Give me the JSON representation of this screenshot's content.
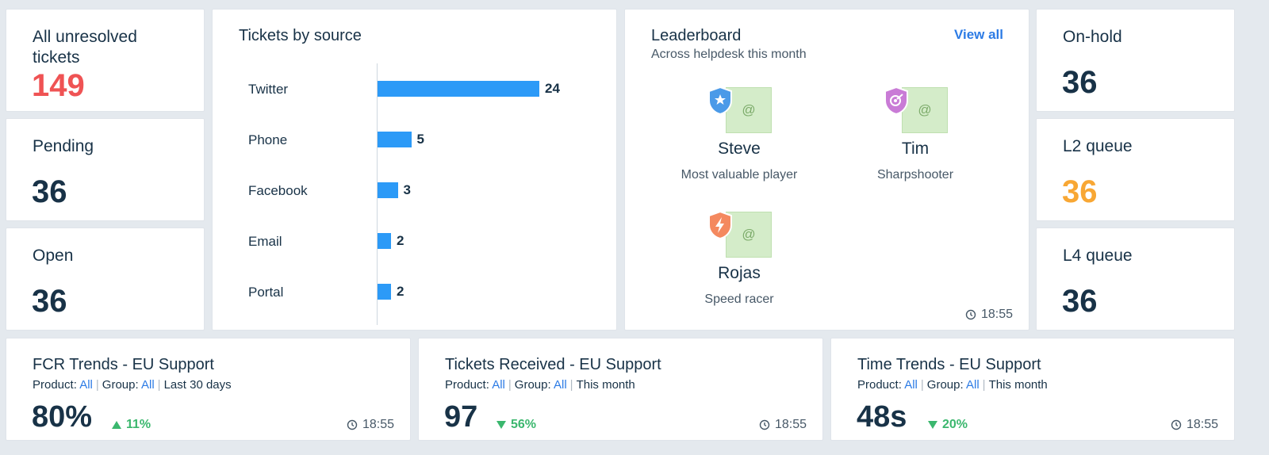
{
  "colors": {
    "red": "#ef5354",
    "orange": "#f8a734",
    "blue_bar": "#2c9af7",
    "green": "#3bb76e",
    "link": "#2c7be5"
  },
  "stats_left": [
    {
      "label": "All unresolved tickets",
      "value": "149",
      "color": "#ef5354"
    },
    {
      "label": "Pending",
      "value": "36",
      "color": "#183247"
    },
    {
      "label": "Open",
      "value": "36",
      "color": "#183247"
    }
  ],
  "stats_right": [
    {
      "label": "On-hold",
      "value": "36",
      "color": "#183247"
    },
    {
      "label": "L2 queue",
      "value": "36",
      "color": "#f8a734"
    },
    {
      "label": "L4 queue",
      "value": "36",
      "color": "#183247"
    }
  ],
  "chart": {
    "title": "Tickets by source",
    "chart_data": {
      "type": "bar",
      "orientation": "horizontal",
      "categories": [
        "Twitter",
        "Phone",
        "Facebook",
        "Email",
        "Portal"
      ],
      "values": [
        24,
        5,
        3,
        2,
        2
      ],
      "title": "Tickets by source",
      "xlim": [
        0,
        24
      ],
      "grid": false,
      "legend": "none"
    }
  },
  "leaderboard": {
    "title": "Leaderboard",
    "subtitle": "Across helpdesk this month",
    "view_all": "View all",
    "avatar_glyph": "@",
    "timestamp": "18:55",
    "people": [
      {
        "name": "Steve",
        "role": "Most valuable player",
        "badge_color": "#4a9ae8",
        "badge_icon": "star-icon"
      },
      {
        "name": "Tim",
        "role": "Sharpshooter",
        "badge_color": "#c97bd6",
        "badge_icon": "target-icon"
      },
      {
        "name": "Rojas",
        "role": "Speed racer",
        "badge_color": "#f4895f",
        "badge_icon": "lightning-icon"
      }
    ]
  },
  "trends": [
    {
      "title": "FCR Trends - EU Support",
      "product_label": "Product:",
      "product_value": "All",
      "group_label": "Group:",
      "group_value": "All",
      "period": "Last 30 days",
      "value": "80%",
      "delta": "11%",
      "direction": "up",
      "timestamp": "18:55"
    },
    {
      "title": "Tickets Received - EU Support",
      "product_label": "Product:",
      "product_value": "All",
      "group_label": "Group:",
      "group_value": "All",
      "period": "This month",
      "value": "97",
      "delta": "56%",
      "direction": "down",
      "timestamp": "18:55"
    },
    {
      "title": "Time Trends - EU Support",
      "product_label": "Product:",
      "product_value": "All",
      "group_label": "Group:",
      "group_value": "All",
      "period": "This month",
      "value": "48s",
      "delta": "20%",
      "direction": "down",
      "timestamp": "18:55"
    }
  ]
}
